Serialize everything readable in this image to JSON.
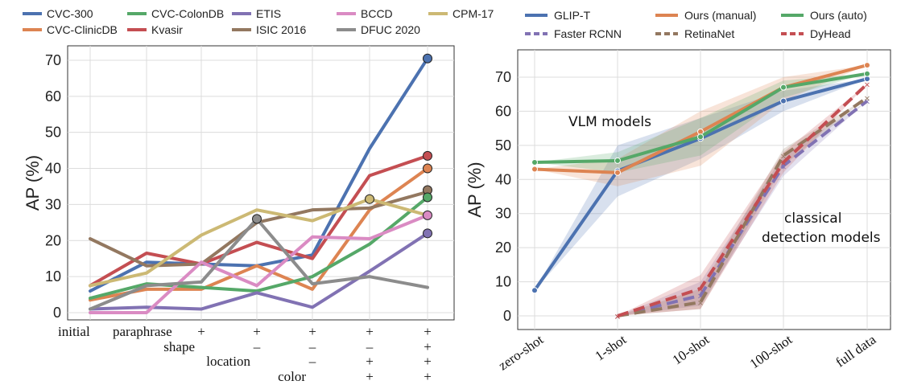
{
  "chart_data": [
    {
      "type": "line",
      "ylabel": "AP (%)",
      "ylim": [
        -2,
        74
      ],
      "yticks": [
        0,
        10,
        20,
        30,
        40,
        50,
        60,
        70
      ],
      "grid": true,
      "legend_placement": "top",
      "x_labels": {
        "row1": [
          "initial",
          "paraphrase",
          "+",
          "+",
          "+",
          "+",
          "+"
        ],
        "row2": [
          "",
          "",
          "shape",
          "–",
          "–",
          "–",
          "+"
        ],
        "row3": [
          "",
          "",
          "",
          "location",
          "–",
          "+",
          "+"
        ],
        "row4": [
          "",
          "",
          "",
          "",
          "color",
          "+",
          "+"
        ]
      },
      "series": [
        {
          "name": "CVC-300",
          "color": "#4C72B0",
          "values": [
            6,
            14,
            13.5,
            13,
            16,
            45.5,
            70.5
          ]
        },
        {
          "name": "CVC-ClinicDB",
          "color": "#DD8452",
          "values": [
            3.5,
            6.5,
            6.5,
            13,
            6.5,
            28.5,
            40
          ]
        },
        {
          "name": "CVC-ColonDB",
          "color": "#55A868",
          "values": [
            4,
            8,
            7,
            6,
            10,
            19,
            32
          ]
        },
        {
          "name": "Kvasir",
          "color": "#C44E52",
          "values": [
            7.5,
            16.5,
            13.5,
            19.5,
            15,
            38,
            43.5
          ]
        },
        {
          "name": "ETIS",
          "color": "#8172B3",
          "values": [
            1,
            1.5,
            1,
            5.5,
            1.5,
            11.5,
            22
          ]
        },
        {
          "name": "ISIC 2016",
          "color": "#937860",
          "values": [
            20.5,
            13,
            13.5,
            25,
            28.5,
            29,
            33.5
          ]
        },
        {
          "name": "BCCD",
          "color": "#DA8BC3",
          "values": [
            0,
            0,
            14,
            7.5,
            21,
            20.5,
            27
          ]
        },
        {
          "name": "DFUC 2020",
          "color": "#8C8C8C",
          "values": [
            1,
            7.5,
            8.5,
            26,
            8,
            10,
            7
          ]
        },
        {
          "name": "CPM-17",
          "color": "#CCB974",
          "values": [
            7.5,
            11,
            21.5,
            28.5,
            25.5,
            31.5,
            27
          ]
        }
      ],
      "end_markers": [
        {
          "series": "CVC-300",
          "x_index": 6,
          "value": 70.5
        },
        {
          "series": "Kvasir",
          "x_index": 6,
          "value": 43.5
        },
        {
          "series": "CVC-ClinicDB",
          "x_index": 6,
          "value": 40
        },
        {
          "series": "ISIC 2016",
          "x_index": 6,
          "value": 34
        },
        {
          "series": "CVC-ColonDB",
          "x_index": 6,
          "value": 32
        },
        {
          "series": "BCCD",
          "x_index": 6,
          "value": 27
        },
        {
          "series": "ETIS",
          "x_index": 6,
          "value": 22
        },
        {
          "series": "CPM-17",
          "x_index": 5,
          "value": 31.5
        },
        {
          "series": "DFUC 2020",
          "x_index": 3,
          "value": 26
        }
      ]
    },
    {
      "type": "line",
      "ylabel": "AP (%)",
      "ylim": [
        -4,
        78
      ],
      "yticks": [
        0,
        10,
        20,
        30,
        40,
        50,
        60,
        70
      ],
      "categories": [
        "zero-shot",
        "1-shot",
        "10-shot",
        "100-shot",
        "full data"
      ],
      "grid": true,
      "legend_placement": "top",
      "annotations": [
        "VLM models",
        "classical",
        "detection models"
      ],
      "series": [
        {
          "name": "GLIP-T",
          "color": "#4C72B0",
          "dashed": false,
          "values": [
            7.5,
            42.5,
            52,
            63,
            69.5
          ],
          "band": [
            null,
            [
              35,
              50
            ],
            [
              46,
              58
            ],
            [
              60,
              66
            ],
            null
          ]
        },
        {
          "name": "Ours (manual)",
          "color": "#DD8452",
          "dashed": false,
          "values": [
            43,
            42,
            54,
            67,
            73.5
          ],
          "band": [
            null,
            [
              38,
              46
            ],
            [
              44,
              60
            ],
            [
              63,
              70
            ],
            null
          ]
        },
        {
          "name": "Ours (auto)",
          "color": "#55A868",
          "dashed": false,
          "values": [
            45,
            45.5,
            52.5,
            67,
            71
          ],
          "band": [
            null,
            [
              42,
              48
            ],
            [
              47,
              58
            ],
            [
              64,
              69
            ],
            null
          ]
        },
        {
          "name": "Faster RCNN",
          "color": "#8172B3",
          "dashed": true,
          "values": [
            null,
            0,
            6,
            44,
            63
          ],
          "band": [
            null,
            null,
            [
              3,
              10
            ],
            [
              41,
              47
            ],
            null
          ]
        },
        {
          "name": "RetinaNet",
          "color": "#937860",
          "dashed": true,
          "values": [
            null,
            0,
            4,
            47,
            64
          ],
          "band": [
            null,
            null,
            [
              2,
              8
            ],
            [
              44,
              49
            ],
            null
          ]
        },
        {
          "name": "DyHead",
          "color": "#C44E52",
          "dashed": true,
          "values": [
            null,
            0,
            8,
            45,
            68
          ],
          "band": [
            null,
            null,
            [
              2,
              12
            ],
            [
              42,
              48
            ],
            null
          ]
        }
      ]
    }
  ]
}
